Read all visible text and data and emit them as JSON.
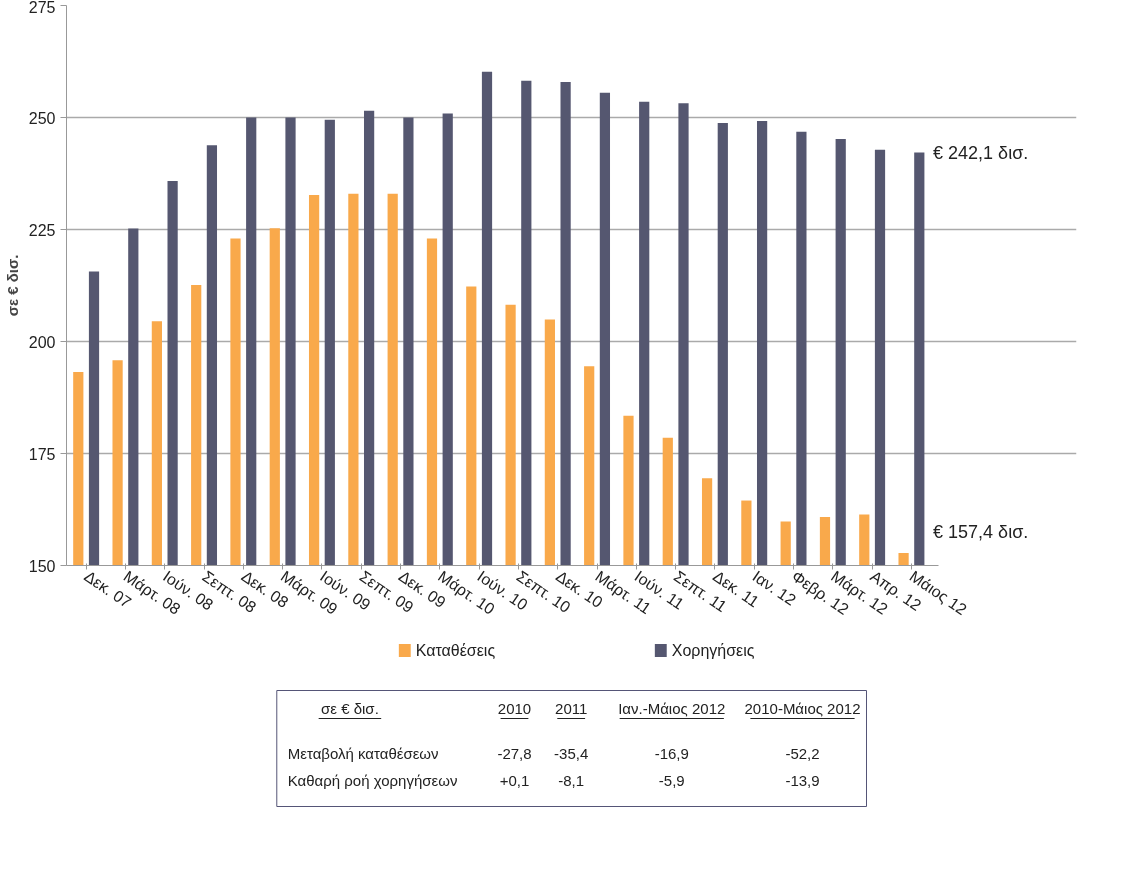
{
  "chart_data": {
    "type": "bar",
    "ylabel": "σε € δισ.",
    "categories": [
      "Δεκ. 07",
      "Μάρτ. 08",
      "Ιούν. 08",
      "Σεπτ. 08",
      "Δεκ. 08",
      "Μάρτ. 09",
      "Ιούν. 09",
      "Σεπτ. 09",
      "Δεκ. 09",
      "Μάρτ. 10",
      "Ιούν. 10",
      "Σεπτ. 10",
      "Δεκ. 10",
      "Μάρτ. 11",
      "Ιούν. 11",
      "Σεπτ. 11",
      "Δεκ. 11",
      "Ιαν. 12",
      "Φεβρ. 12",
      "Μάρτ. 12",
      "Απρ. 12",
      "Μάιος 12"
    ],
    "series": [
      {
        "name": "Καταθέσεις",
        "color": "#f9a94b",
        "values": [
          193.2,
          195.8,
          204.5,
          212.6,
          223.0,
          225.3,
          232.7,
          233.0,
          233.0,
          223.0,
          212.3,
          208.2,
          204.9,
          194.5,
          183.4,
          178.5,
          169.5,
          164.5,
          159.8,
          160.8,
          161.4,
          152.8
        ]
      },
      {
        "name": "Χορηγήσεις",
        "color": "#555770",
        "values": [
          215.6,
          225.2,
          235.8,
          243.8,
          250.0,
          250.0,
          249.5,
          251.5,
          250.0,
          250.9,
          260.2,
          258.2,
          257.9,
          255.5,
          253.5,
          253.2,
          248.8,
          249.2,
          246.8,
          245.2,
          242.8,
          242.2
        ]
      }
    ],
    "ylim": [
      150,
      275
    ],
    "yticks": [
      150,
      175,
      200,
      225,
      250,
      275
    ],
    "grid": "y",
    "legend": "bottom",
    "annotations": [
      {
        "text": "€ 242,1 δισ.",
        "x": "Μάιος 12",
        "y": 242.1
      },
      {
        "text": "€ 157,4 δισ.",
        "x": "Μάιος 12",
        "y": 157.4
      },
      "σε € δισ.",
      "2010",
      "2011",
      "Ιαν.-Μάιος 2012",
      "2010-Μάιος 2012",
      "Μεταβολή καταθέσεων",
      "-27,8",
      "-35,4",
      "-16,9",
      "-52,2",
      "Καθαρή ροή χορηγήσεων",
      "+0,1",
      "-8,1",
      "-5,9",
      "-13,9"
    ]
  }
}
